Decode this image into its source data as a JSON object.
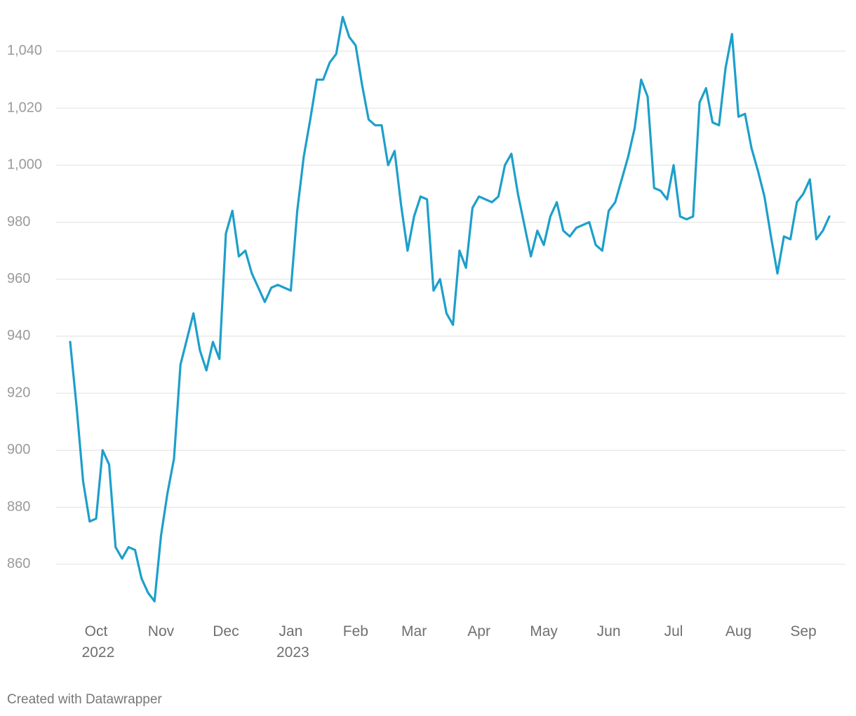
{
  "chart_data": {
    "type": "line",
    "categories": [
      null,
      null,
      null,
      null,
      "Oct 2022",
      null,
      null,
      null,
      null,
      null,
      null,
      null,
      null,
      null,
      "Nov",
      null,
      null,
      null,
      null,
      null,
      null,
      null,
      null,
      null,
      "Dec",
      null,
      null,
      null,
      null,
      null,
      null,
      null,
      null,
      null,
      "Jan 2023",
      null,
      null,
      null,
      null,
      null,
      null,
      null,
      null,
      null,
      "Feb",
      null,
      null,
      null,
      null,
      null,
      null,
      null,
      null,
      "Mar",
      null,
      null,
      null,
      null,
      null,
      null,
      null,
      null,
      null,
      "Apr",
      null,
      null,
      null,
      null,
      null,
      null,
      null,
      null,
      null,
      "May",
      null,
      null,
      null,
      null,
      null,
      null,
      null,
      null,
      null,
      "Jun",
      null,
      null,
      null,
      null,
      null,
      null,
      null,
      null,
      null,
      "Jul",
      null,
      null,
      null,
      null,
      null,
      null,
      null,
      null,
      null,
      "Aug",
      null,
      null,
      null,
      null,
      null,
      null,
      null,
      null,
      null,
      "Sep",
      null,
      null,
      null,
      null
    ],
    "series": [
      {
        "color": "#1d9fcb",
        "values": [
          938,
          915,
          889,
          875,
          876,
          900,
          895,
          866,
          862,
          866,
          865,
          855,
          850,
          847,
          870,
          885,
          897,
          930,
          939,
          948,
          935,
          928,
          938,
          932,
          976,
          984,
          968,
          970,
          962,
          957,
          952,
          957,
          958,
          957,
          956,
          984,
          1003,
          1016,
          1030,
          1030,
          1036,
          1039,
          1052,
          1045,
          1042,
          1028,
          1016,
          1014,
          1014,
          1000,
          1005,
          986,
          970,
          982,
          989,
          988,
          956,
          960,
          948,
          944,
          970,
          964,
          985,
          989,
          988,
          987,
          989,
          1000,
          1004,
          990,
          979,
          968,
          977,
          972,
          982,
          987,
          977,
          975,
          978,
          979,
          980,
          972,
          970,
          984,
          987,
          995,
          1003,
          1013,
          1030,
          1024,
          992,
          991,
          988,
          1000,
          982,
          981,
          982,
          1022,
          1027,
          1015,
          1014,
          1034,
          1046,
          1017,
          1018,
          1006,
          998,
          989,
          975,
          962,
          975,
          974,
          987,
          990,
          995,
          974,
          977,
          982
        ]
      }
    ],
    "ylim": [
      840,
      1054
    ],
    "yticks": [
      860,
      880,
      900,
      920,
      940,
      960,
      980,
      {
        "value": 1000,
        "label": "1,000"
      },
      {
        "value": 1020,
        "label": "1,020"
      },
      {
        "value": 1040,
        "label": "1,040"
      }
    ],
    "grid": true,
    "footer": "Created with Datawrapper"
  }
}
